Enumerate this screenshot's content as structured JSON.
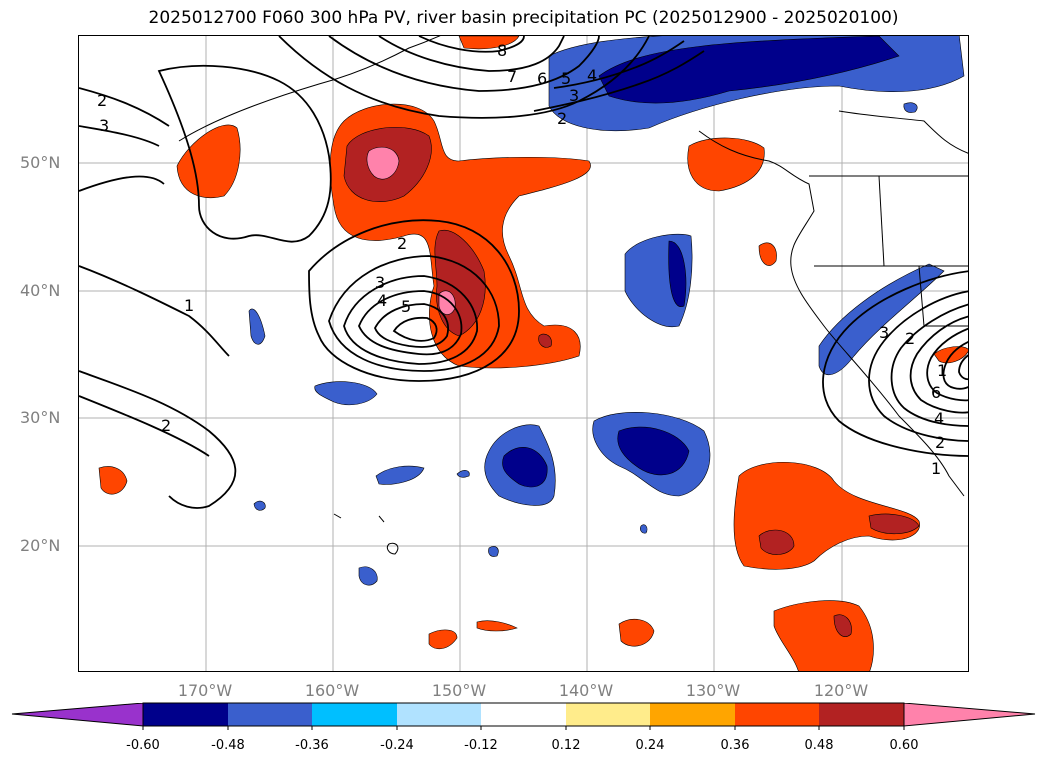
{
  "title": "2025012700 F060 300 hPa PV, river basin precipitation PC (2025012900 - 2025020100)",
  "map": {
    "lat_labels": [
      "50°N",
      "40°N",
      "30°N",
      "20°N"
    ],
    "lon_labels": [
      "170°W",
      "160°W",
      "150°W",
      "140°W",
      "130°W",
      "120°W"
    ],
    "contour_labels": [
      "1",
      "2",
      "3",
      "4",
      "5",
      "6",
      "7",
      "8"
    ]
  },
  "colorbar": {
    "ticks": [
      "-0.60",
      "-0.48",
      "-0.36",
      "-0.24",
      "-0.12",
      "0.12",
      "0.24",
      "0.36",
      "0.48",
      "0.60"
    ],
    "colors": [
      "#9932cc",
      "#00008b",
      "#3a5fcd",
      "#00bfff",
      "#b0e2ff",
      "#ffffff",
      "#ffec8b",
      "#ffa500",
      "#ff4500",
      "#b22222",
      "#ff82ab"
    ]
  }
}
